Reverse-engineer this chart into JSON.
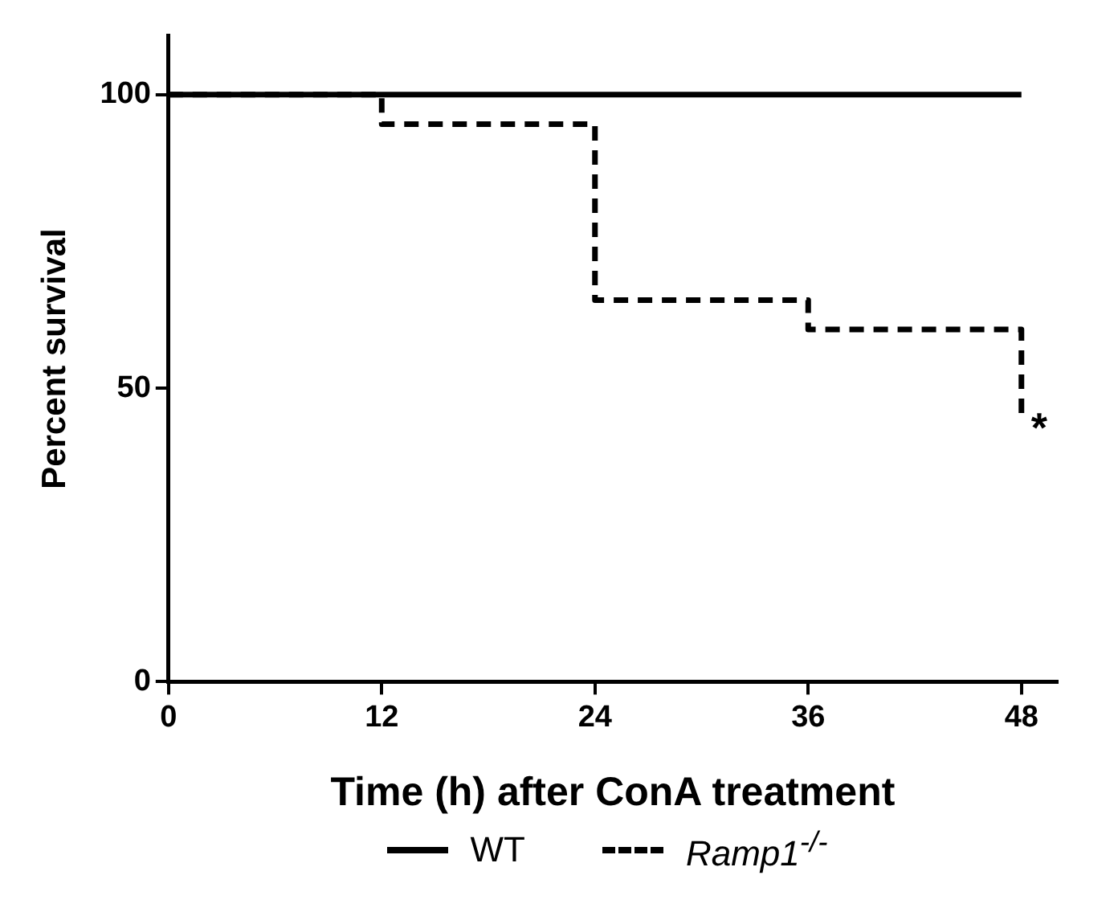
{
  "chart_data": {
    "type": "step",
    "xlabel": "Time (h) after ConA treatment",
    "ylabel": "Percent survival",
    "xlim": [
      0,
      50
    ],
    "xticks": [
      0,
      12,
      24,
      36,
      48
    ],
    "ylim": [
      0,
      110
    ],
    "yticks": [
      0,
      50,
      100
    ],
    "grid": false,
    "legend": "bottom",
    "marker": "none",
    "series": [
      {
        "name": "WT",
        "color": "#000000",
        "line_style": "solid",
        "x": [
          0,
          48
        ],
        "values": [
          100,
          100
        ]
      },
      {
        "name": "Ramp1$^{-/-}$",
        "color": "#000000",
        "line_style": "dashed",
        "x": [
          0,
          12,
          24,
          36,
          48
        ],
        "values": [
          100,
          95,
          65,
          60,
          45
        ]
      }
    ],
    "annotations": [
      {
        "text": "*",
        "x": 48,
        "y": 45
      }
    ]
  }
}
